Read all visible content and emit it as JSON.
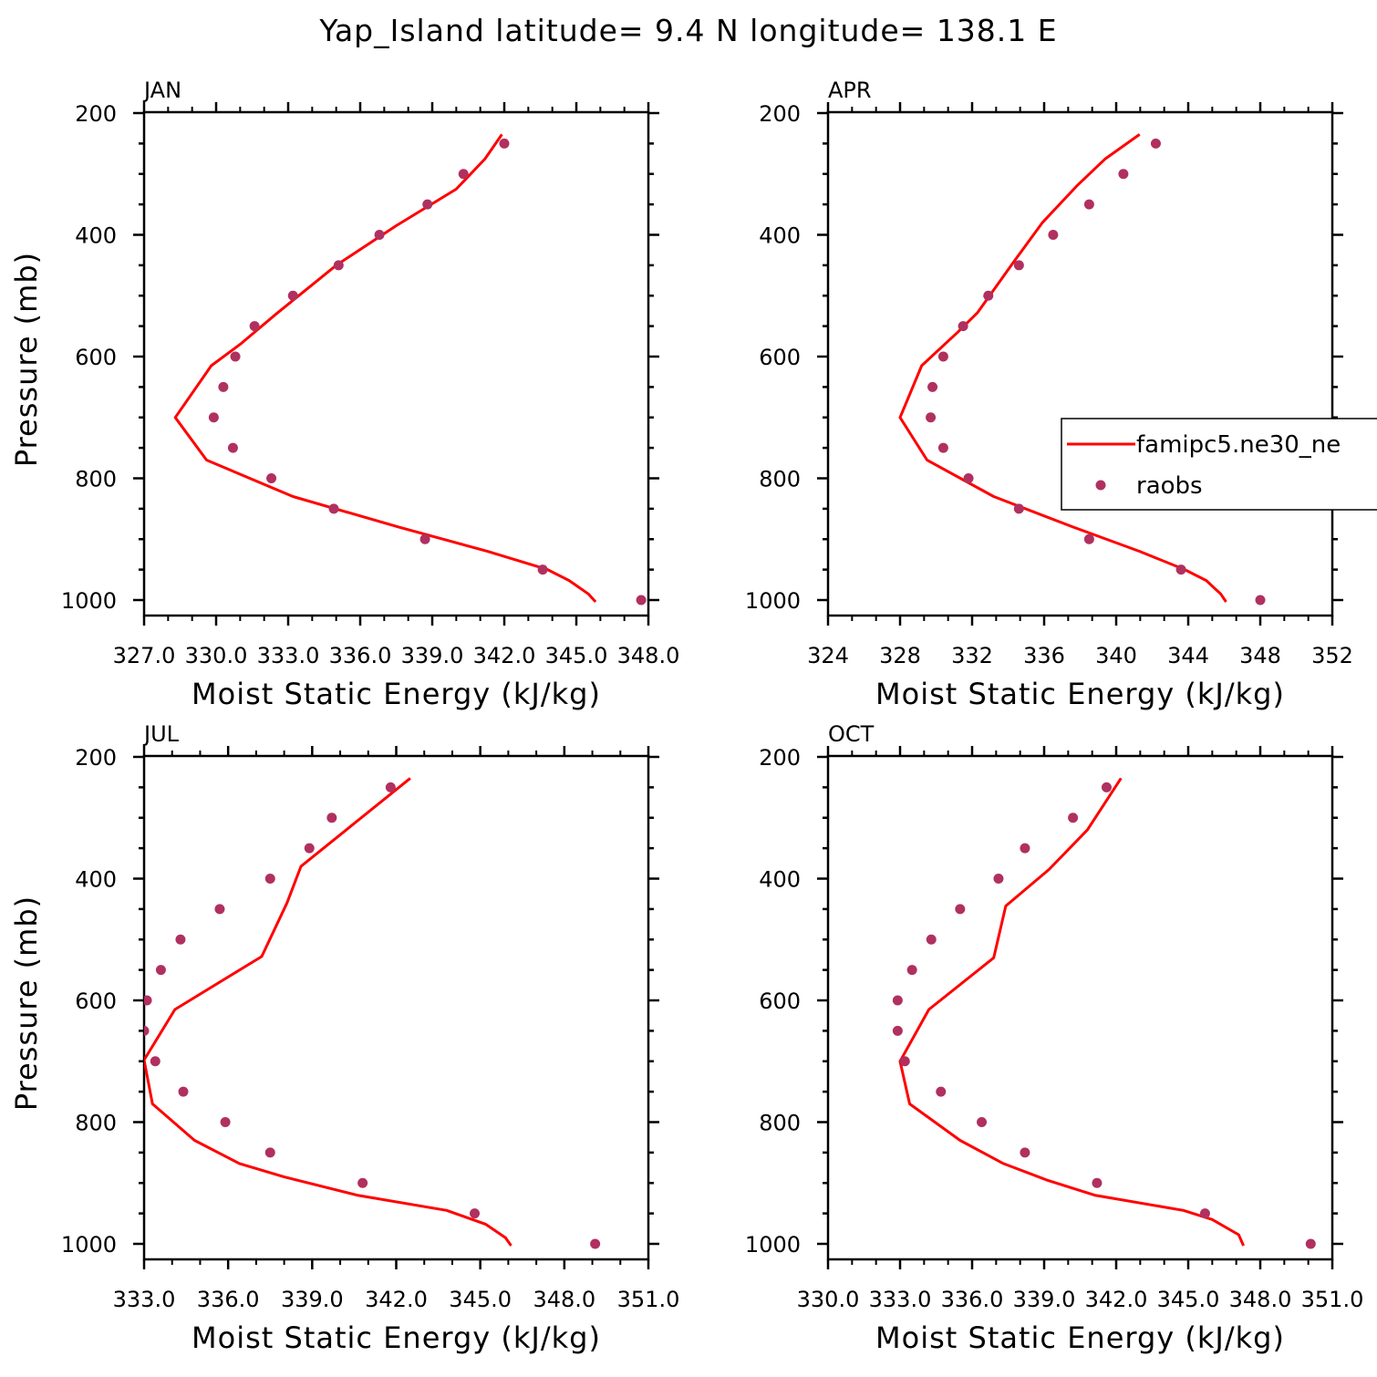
{
  "title": "Yap_Island  latitude= 9.4 N longitude= 138.1 E",
  "legend": {
    "model_label": "famipc5.ne30_ne",
    "obs_label": "raobs"
  },
  "colors": {
    "model_line": "#ff0000",
    "obs_marker": "#b03060"
  },
  "chart_data": [
    {
      "type": "line",
      "panel": "JAN",
      "xlabel": "Moist Static Energy (kJ/kg)",
      "ylabel": "Pressure (mb)",
      "xlim": [
        327.0,
        348.0
      ],
      "ylim": [
        1000,
        200
      ],
      "x_ticks": [
        "327.0",
        "330.0",
        "333.0",
        "336.0",
        "339.0",
        "342.0",
        "345.0",
        "348.0"
      ],
      "y_ticks": [
        "200",
        "400",
        "600",
        "800",
        "1000"
      ],
      "legend_shown": false,
      "series": [
        {
          "name": "famipc5.ne30_ne",
          "style": "line",
          "points": [
            [
              341.9,
              235
            ],
            [
              341.2,
              275
            ],
            [
              340.0,
              325
            ],
            [
              337.5,
              385
            ],
            [
              335.0,
              450
            ],
            [
              332.5,
              530
            ],
            [
              331.0,
              580
            ],
            [
              329.8,
              615
            ],
            [
              328.3,
              700
            ],
            [
              329.6,
              770
            ],
            [
              333.2,
              830
            ],
            [
              337.6,
              880
            ],
            [
              341.3,
              920
            ],
            [
              343.8,
              950
            ],
            [
              344.7,
              968
            ],
            [
              345.5,
              990
            ],
            [
              345.8,
              1003
            ]
          ]
        },
        {
          "name": "raobs",
          "style": "markers",
          "points": [
            [
              342.0,
              250
            ],
            [
              340.3,
              300
            ],
            [
              338.8,
              350
            ],
            [
              336.8,
              400
            ],
            [
              335.1,
              450
            ],
            [
              333.2,
              500
            ],
            [
              331.6,
              550
            ],
            [
              330.8,
              600
            ],
            [
              330.3,
              650
            ],
            [
              329.9,
              700
            ],
            [
              330.7,
              750
            ],
            [
              332.3,
              800
            ],
            [
              334.9,
              850
            ],
            [
              338.7,
              900
            ],
            [
              343.6,
              950
            ],
            [
              347.7,
              1000
            ]
          ]
        }
      ]
    },
    {
      "type": "line",
      "panel": "APR",
      "xlabel": "Moist Static Energy (kJ/kg)",
      "ylabel": "",
      "xlim": [
        324,
        352
      ],
      "ylim": [
        1000,
        200
      ],
      "x_ticks": [
        "324",
        "328",
        "332",
        "336",
        "340",
        "344",
        "348",
        "352"
      ],
      "y_ticks": [
        "200",
        "400",
        "600",
        "800",
        "1000"
      ],
      "legend_shown": true,
      "series": [
        {
          "name": "famipc5.ne30_ne",
          "style": "line",
          "points": [
            [
              341.3,
              235
            ],
            [
              339.4,
              275
            ],
            [
              337.8,
              320
            ],
            [
              335.9,
              380
            ],
            [
              334.3,
              445
            ],
            [
              332.3,
              528
            ],
            [
              331.2,
              560
            ],
            [
              329.2,
              615
            ],
            [
              328.0,
              700
            ],
            [
              329.5,
              770
            ],
            [
              333.2,
              830
            ],
            [
              337.6,
              880
            ],
            [
              341.3,
              920
            ],
            [
              343.8,
              950
            ],
            [
              345.0,
              968
            ],
            [
              345.8,
              990
            ],
            [
              346.1,
              1003
            ]
          ]
        },
        {
          "name": "raobs",
          "style": "markers",
          "points": [
            [
              342.2,
              250
            ],
            [
              340.4,
              300
            ],
            [
              338.5,
              350
            ],
            [
              336.5,
              400
            ],
            [
              334.6,
              450
            ],
            [
              332.9,
              500
            ],
            [
              331.5,
              550
            ],
            [
              330.4,
              600
            ],
            [
              329.8,
              650
            ],
            [
              329.7,
              700
            ],
            [
              330.4,
              750
            ],
            [
              331.8,
              800
            ],
            [
              334.6,
              850
            ],
            [
              338.5,
              900
            ],
            [
              343.6,
              950
            ],
            [
              348.0,
              1000
            ]
          ]
        }
      ]
    },
    {
      "type": "line",
      "panel": "JUL",
      "xlabel": "Moist Static Energy (kJ/kg)",
      "ylabel": "Pressure (mb)",
      "xlim": [
        333.0,
        351.0
      ],
      "ylim": [
        1000,
        200
      ],
      "x_ticks": [
        "333.0",
        "336.0",
        "339.0",
        "342.0",
        "345.0",
        "348.0",
        "351.0"
      ],
      "y_ticks": [
        "200",
        "400",
        "600",
        "800",
        "1000"
      ],
      "legend_shown": false,
      "series": [
        {
          "name": "famipc5.ne30_ne",
          "style": "line",
          "points": [
            [
              342.5,
              235
            ],
            [
              338.6,
              380
            ],
            [
              338.1,
              440
            ],
            [
              337.2,
              528
            ],
            [
              334.1,
              615
            ],
            [
              333.0,
              698
            ],
            [
              333.3,
              770
            ],
            [
              334.8,
              830
            ],
            [
              336.4,
              868
            ],
            [
              338.0,
              890
            ],
            [
              340.6,
              920
            ],
            [
              343.8,
              945
            ],
            [
              345.2,
              968
            ],
            [
              345.9,
              990
            ],
            [
              346.1,
              1003
            ]
          ]
        },
        {
          "name": "raobs",
          "style": "markers",
          "points": [
            [
              341.8,
              250
            ],
            [
              339.7,
              300
            ],
            [
              338.9,
              350
            ],
            [
              337.5,
              400
            ],
            [
              335.7,
              450
            ],
            [
              334.3,
              500
            ],
            [
              333.6,
              550
            ],
            [
              333.1,
              600
            ],
            [
              333.0,
              650
            ],
            [
              333.4,
              700
            ],
            [
              334.4,
              750
            ],
            [
              335.9,
              800
            ],
            [
              337.5,
              850
            ],
            [
              340.8,
              900
            ],
            [
              344.8,
              950
            ],
            [
              349.1,
              1000
            ]
          ]
        }
      ]
    },
    {
      "type": "line",
      "panel": "OCT",
      "xlabel": "Moist Static Energy (kJ/kg)",
      "ylabel": "",
      "xlim": [
        330.0,
        351.0
      ],
      "ylim": [
        1000,
        200
      ],
      "x_ticks": [
        "330.0",
        "333.0",
        "336.0",
        "339.0",
        "342.0",
        "345.0",
        "348.0",
        "351.0"
      ],
      "y_ticks": [
        "200",
        "400",
        "600",
        "800",
        "1000"
      ],
      "legend_shown": false,
      "series": [
        {
          "name": "famipc5.ne30_ne",
          "style": "line",
          "points": [
            [
              342.2,
              235
            ],
            [
              340.8,
              320
            ],
            [
              339.2,
              385
            ],
            [
              337.4,
              445
            ],
            [
              336.9,
              530
            ],
            [
              334.2,
              615
            ],
            [
              333.0,
              700
            ],
            [
              333.4,
              770
            ],
            [
              335.5,
              830
            ],
            [
              337.3,
              868
            ],
            [
              339.1,
              895
            ],
            [
              341.1,
              920
            ],
            [
              344.8,
              945
            ],
            [
              346.0,
              960
            ],
            [
              347.1,
              985
            ],
            [
              347.3,
              1003
            ]
          ]
        },
        {
          "name": "raobs",
          "style": "markers",
          "points": [
            [
              341.6,
              250
            ],
            [
              340.2,
              300
            ],
            [
              338.2,
              350
            ],
            [
              337.1,
              400
            ],
            [
              335.5,
              450
            ],
            [
              334.3,
              500
            ],
            [
              333.5,
              550
            ],
            [
              332.9,
              600
            ],
            [
              332.9,
              650
            ],
            [
              333.2,
              700
            ],
            [
              334.7,
              750
            ],
            [
              336.4,
              800
            ],
            [
              338.2,
              850
            ],
            [
              341.2,
              900
            ],
            [
              345.7,
              950
            ],
            [
              350.1,
              1000
            ]
          ]
        }
      ]
    }
  ]
}
